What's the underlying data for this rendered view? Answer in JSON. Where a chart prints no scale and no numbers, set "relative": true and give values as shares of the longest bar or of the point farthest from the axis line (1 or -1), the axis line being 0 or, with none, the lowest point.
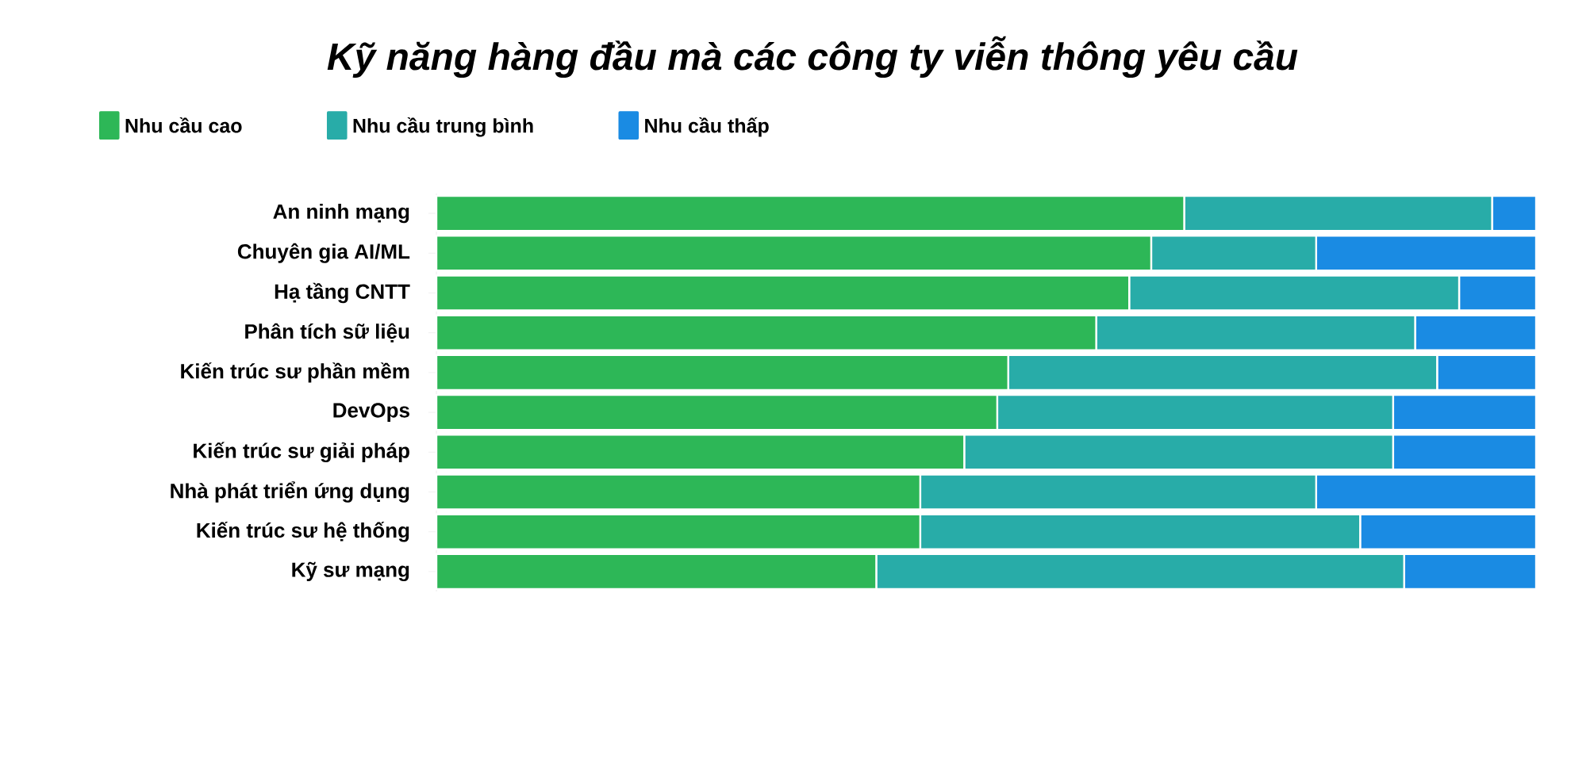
{
  "chart_data": {
    "type": "bar",
    "orientation": "horizontal",
    "stacked": true,
    "relative": true,
    "title": "Kỹ năng hàng đầu mà các công ty viễn thông yêu cầu",
    "categories": [
      "An ninh mạng",
      "Chuyên gia AI/ML",
      "Hạ tầng CNTT",
      "Phân tích sữ liệu",
      "Kiến trúc sư phần mềm",
      "DevOps",
      "Kiến trúc sư giải pháp",
      "Nhà phát triển ứng dụng",
      "Kiến trúc sư hệ thống",
      "Kỹ sư mạng"
    ],
    "series": [
      {
        "name": "Nhu cầu cao",
        "color": "#2db757",
        "values": [
          0.68,
          0.65,
          0.63,
          0.6,
          0.52,
          0.51,
          0.48,
          0.44,
          0.44,
          0.4
        ]
      },
      {
        "name": "Nhu cầu trung bình",
        "color": "#28aca8",
        "values": [
          0.28,
          0.15,
          0.3,
          0.29,
          0.39,
          0.36,
          0.39,
          0.36,
          0.4,
          0.48
        ]
      },
      {
        "name": "Nhu cầu thấp",
        "color": "#1a8be3",
        "values": [
          0.04,
          0.2,
          0.07,
          0.11,
          0.09,
          0.13,
          0.13,
          0.2,
          0.16,
          0.12
        ]
      }
    ],
    "legend": "top left"
  }
}
